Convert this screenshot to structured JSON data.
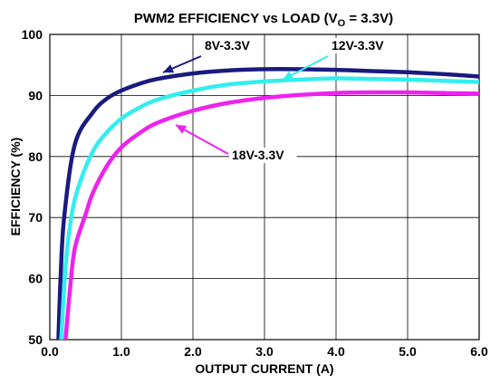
{
  "chart_data": {
    "type": "line",
    "title": "PWM2 EFFICIENCY vs LOAD (V",
    "title_sub": "O",
    "title_tail": " = 3.3V)",
    "xlabel": "OUTPUT CURRENT (A)",
    "ylabel": "EFFICIENCY (%)",
    "xlim": [
      0,
      6
    ],
    "ylim": [
      50,
      100
    ],
    "xticks": [
      "0.0",
      "1.0",
      "2.0",
      "3.0",
      "4.0",
      "5.0",
      "6.0"
    ],
    "xtick_values": [
      0,
      1,
      2,
      3,
      4,
      5,
      6
    ],
    "yticks": [
      "50",
      "60",
      "70",
      "80",
      "90",
      "100"
    ],
    "ytick_values": [
      50,
      60,
      70,
      80,
      90,
      100
    ],
    "grid": true,
    "series": [
      {
        "name": "8V-3.3V",
        "color": "#1a1a80",
        "x": [
          0.12,
          0.15,
          0.2,
          0.35,
          0.6,
          0.8,
          1.0,
          1.25,
          1.5,
          2.0,
          2.5,
          3.0,
          3.5,
          4.0,
          4.5,
          5.0,
          5.5,
          6.0
        ],
        "y": [
          50,
          60,
          70,
          82,
          87.2,
          89.5,
          90.8,
          91.9,
          92.7,
          93.6,
          94.1,
          94.3,
          94.3,
          94.2,
          94.0,
          93.8,
          93.5,
          93.1
        ]
      },
      {
        "name": "12V-3.3V",
        "color": "#33eeee",
        "x": [
          0.16,
          0.22,
          0.3,
          0.4,
          0.6,
          0.8,
          1.0,
          1.25,
          1.5,
          2.0,
          2.5,
          3.0,
          3.5,
          4.0,
          4.5,
          5.0,
          5.5,
          6.0
        ],
        "y": [
          50,
          62,
          70,
          75,
          80.8,
          84,
          86.2,
          88,
          89.3,
          90.8,
          91.8,
          92.3,
          92.6,
          92.8,
          92.7,
          92.6,
          92.4,
          92.2
        ]
      },
      {
        "name": "18V-3.3V",
        "color": "#ee22ee",
        "x": [
          0.22,
          0.28,
          0.35,
          0.5,
          0.6,
          0.8,
          1.0,
          1.25,
          1.5,
          2.0,
          2.5,
          3.0,
          3.5,
          4.0,
          4.5,
          5.0,
          5.5,
          6.0
        ],
        "y": [
          50,
          58,
          65,
          70.5,
          74,
          78.5,
          81.5,
          83.8,
          85.5,
          87.5,
          88.8,
          89.6,
          90.1,
          90.4,
          90.5,
          90.5,
          90.4,
          90.3
        ]
      }
    ]
  }
}
